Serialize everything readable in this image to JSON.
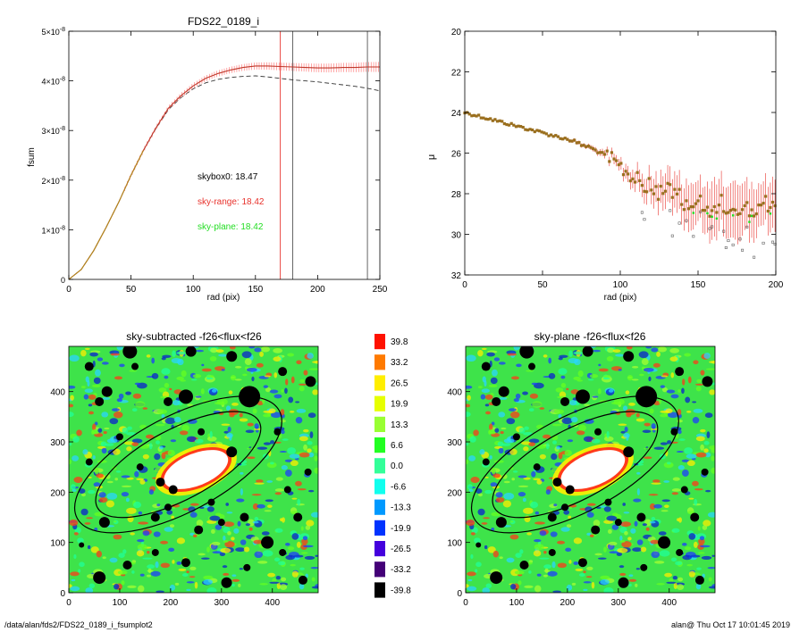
{
  "page": {
    "path": "/data/alan/fds2/FDS22_0189_i_fsumplot2",
    "user_stamp": "alan@  Thu Oct 17 10:01:45 2019"
  },
  "colors": {
    "sky_range": "#e8322c",
    "sky_plane": "#22dd22",
    "profile_main": "#ff8080",
    "curve_dashed": "#333333",
    "curve_gold": "#b08a1c",
    "ellipse": "#000000"
  },
  "chart_data": [
    {
      "id": "fsum",
      "type": "line",
      "title": "FDS22_0189_i",
      "xlabel": "rad (pix)",
      "ylabel": "fsum",
      "xlim": [
        0,
        250
      ],
      "ylim": [
        0,
        5e-08
      ],
      "x_ticks": [
        {
          "value": 0,
          "label": "0"
        },
        {
          "value": 50,
          "label": "50"
        },
        {
          "value": 100,
          "label": "100"
        },
        {
          "value": 150,
          "label": "150"
        },
        {
          "value": 200,
          "label": "200"
        },
        {
          "value": 250,
          "label": "250"
        }
      ],
      "y_ticks": [
        {
          "value": 0,
          "mant": "0",
          "exp": ""
        },
        {
          "value": 1e-08,
          "mant": "1×10",
          "exp": "-8"
        },
        {
          "value": 2e-08,
          "mant": "2×10",
          "exp": "-8"
        },
        {
          "value": 3e-08,
          "mant": "3×10",
          "exp": "-8"
        },
        {
          "value": 4e-08,
          "mant": "4×10",
          "exp": "-8"
        },
        {
          "value": 5e-08,
          "mant": "5×10",
          "exp": "-8"
        }
      ],
      "vertical_lines": [
        {
          "x": 170,
          "color": "#e8322c"
        },
        {
          "x": 180,
          "color": "#555555"
        },
        {
          "x": 240,
          "color": "#555555"
        }
      ],
      "annotations": [
        {
          "text": "skybox0: 18.47",
          "color": "#000000"
        },
        {
          "text": "sky-range: 18.42",
          "color": "#e8322c"
        },
        {
          "text": "sky-plane: 18.42",
          "color": "#22dd22"
        }
      ],
      "series": [
        {
          "style": "solid-errorbars",
          "x": [
            0,
            10,
            20,
            30,
            40,
            50,
            60,
            70,
            80,
            90,
            100,
            110,
            120,
            130,
            140,
            150,
            160,
            170,
            180,
            190,
            200,
            210,
            220,
            230,
            240,
            250
          ],
          "y": [
            0,
            2e-09,
            5.8e-09,
            1.05e-08,
            1.55e-08,
            2.1e-08,
            2.6e-08,
            3.05e-08,
            3.45e-08,
            3.7e-08,
            3.9e-08,
            4.05e-08,
            4.15e-08,
            4.22e-08,
            4.27e-08,
            4.3e-08,
            4.3e-08,
            4.29e-08,
            4.28e-08,
            4.27e-08,
            4.26e-08,
            4.26e-08,
            4.27e-08,
            4.27e-08,
            4.28e-08,
            4.28e-08
          ]
        },
        {
          "style": "dashed",
          "x": [
            0,
            10,
            20,
            30,
            40,
            50,
            60,
            70,
            80,
            90,
            100,
            110,
            120,
            130,
            140,
            150,
            160,
            170,
            180,
            190,
            200,
            210,
            220,
            230,
            240,
            250
          ],
          "y": [
            0,
            2e-09,
            5.8e-09,
            1.05e-08,
            1.55e-08,
            2.1e-08,
            2.6e-08,
            3.04e-08,
            3.42e-08,
            3.66e-08,
            3.84e-08,
            3.96e-08,
            4.03e-08,
            4.07e-08,
            4.09e-08,
            4.1e-08,
            4.08e-08,
            4.05e-08,
            4.02e-08,
            4e-08,
            3.98e-08,
            3.95e-08,
            3.92e-08,
            3.89e-08,
            3.85e-08,
            3.8e-08
          ]
        }
      ]
    },
    {
      "id": "mu",
      "type": "scatter",
      "xlabel": "rad (pix)",
      "ylabel": "μ",
      "xlim": [
        0,
        200
      ],
      "ylim": [
        20,
        32
      ],
      "y_inverted": true,
      "x_ticks": [
        {
          "value": 0,
          "label": "0"
        },
        {
          "value": 50,
          "label": "50"
        },
        {
          "value": 100,
          "label": "100"
        },
        {
          "value": 150,
          "label": "150"
        },
        {
          "value": 200,
          "label": "200"
        }
      ],
      "y_ticks": [
        {
          "value": 20,
          "label": "20"
        },
        {
          "value": 22,
          "label": "22"
        },
        {
          "value": 24,
          "label": "24"
        },
        {
          "value": 26,
          "label": "26"
        },
        {
          "value": 28,
          "label": "28"
        },
        {
          "value": 30,
          "label": "30"
        },
        {
          "value": 32,
          "label": "32"
        }
      ],
      "series": [
        {
          "style": "points-errorbars",
          "x": [
            0,
            5,
            10,
            15,
            20,
            25,
            30,
            35,
            40,
            45,
            50,
            55,
            60,
            65,
            70,
            75,
            80,
            85,
            90,
            95,
            100,
            105,
            110,
            115,
            120,
            125,
            130,
            135,
            140,
            145,
            150,
            155,
            160,
            165,
            170,
            175,
            180,
            185,
            190,
            195,
            200
          ],
          "y": [
            24.0,
            24.1,
            24.2,
            24.3,
            24.4,
            24.5,
            24.6,
            24.7,
            24.8,
            24.9,
            25.0,
            25.1,
            25.2,
            25.3,
            25.4,
            25.6,
            25.7,
            25.9,
            26.1,
            26.4,
            26.7,
            27.0,
            27.3,
            27.5,
            27.7,
            27.9,
            27.8,
            28.0,
            28.3,
            28.7,
            28.2,
            28.6,
            29.0,
            28.4,
            28.7,
            29.2,
            28.5,
            28.9,
            28.3,
            28.6,
            28.8
          ],
          "err": [
            0.05,
            0.05,
            0.05,
            0.05,
            0.05,
            0.05,
            0.06,
            0.06,
            0.06,
            0.07,
            0.07,
            0.07,
            0.08,
            0.08,
            0.09,
            0.1,
            0.12,
            0.15,
            0.2,
            0.25,
            0.3,
            0.4,
            0.5,
            0.6,
            0.7,
            0.8,
            0.9,
            0.9,
            1.0,
            1.2,
            1.0,
            1.2,
            1.5,
            1.2,
            1.3,
            1.5,
            1.2,
            1.4,
            1.0,
            1.2,
            1.3
          ]
        }
      ]
    },
    {
      "id": "img_left",
      "type": "heatmap",
      "title": "sky-subtracted -f26<flux<f26",
      "xlim": [
        0,
        490
      ],
      "ylim": [
        0,
        490
      ],
      "x_ticks": [
        {
          "value": 0,
          "label": "0"
        },
        {
          "value": 100,
          "label": "100"
        },
        {
          "value": 200,
          "label": "200"
        },
        {
          "value": 300,
          "label": "300"
        },
        {
          "value": 400,
          "label": "400"
        }
      ],
      "y_ticks": [
        {
          "value": 0,
          "label": "0"
        },
        {
          "value": 100,
          "label": "100"
        },
        {
          "value": 200,
          "label": "200"
        },
        {
          "value": 300,
          "label": "300"
        },
        {
          "value": 400,
          "label": "400"
        }
      ],
      "ellipse_center": [
        215,
        255
      ],
      "ellipse_angle_deg": 28,
      "ellipses": [
        {
          "a": 225,
          "b": 95
        },
        {
          "a": 180,
          "b": 70
        }
      ]
    },
    {
      "id": "img_right",
      "type": "heatmap",
      "title": "sky-plane -f26<flux<f26",
      "xlim": [
        0,
        490
      ],
      "ylim": [
        0,
        490
      ],
      "x_ticks": [
        {
          "value": 0,
          "label": "0"
        },
        {
          "value": 100,
          "label": "100"
        },
        {
          "value": 200,
          "label": "200"
        },
        {
          "value": 300,
          "label": "300"
        },
        {
          "value": 400,
          "label": "400"
        }
      ],
      "y_ticks": [
        {
          "value": 0,
          "label": "0"
        },
        {
          "value": 100,
          "label": "100"
        },
        {
          "value": 200,
          "label": "200"
        },
        {
          "value": 300,
          "label": "300"
        },
        {
          "value": 400,
          "label": "400"
        }
      ],
      "ellipse_center": [
        215,
        255
      ],
      "ellipse_angle_deg": 28,
      "ellipses": [
        {
          "a": 225,
          "b": 95
        },
        {
          "a": 180,
          "b": 70
        }
      ]
    },
    {
      "id": "colorbar",
      "type": "colorbar",
      "levels": [
        {
          "label": "39.8",
          "color": "#ff1100"
        },
        {
          "label": "33.2",
          "color": "#ff7a00"
        },
        {
          "label": "26.5",
          "color": "#ffee00"
        },
        {
          "label": "19.9",
          "color": "#e6ff00"
        },
        {
          "label": "13.3",
          "color": "#99ff33"
        },
        {
          "label": "6.6",
          "color": "#22ff22"
        },
        {
          "label": "0.0",
          "color": "#33ff99"
        },
        {
          "label": "-6.6",
          "color": "#11ffee"
        },
        {
          "label": "-13.3",
          "color": "#0099ff"
        },
        {
          "label": "-19.9",
          "color": "#0033ff"
        },
        {
          "label": "-26.5",
          "color": "#4400dd"
        },
        {
          "label": "-33.2",
          "color": "#440077"
        },
        {
          "label": "-39.8",
          "color": "#000000"
        }
      ]
    }
  ]
}
